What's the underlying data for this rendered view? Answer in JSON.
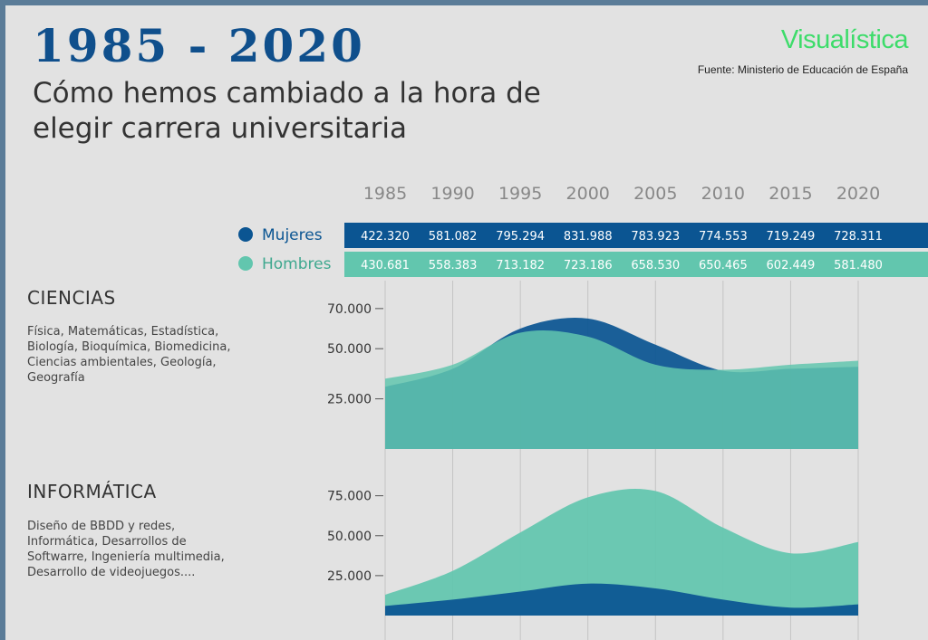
{
  "header": {
    "title": "1985 - 2020",
    "subtitle": "Cómo hemos cambiado a la hora de elegir carrera universitaria",
    "brand": "Visualística",
    "source": "Fuente: Ministerio de Educación de España"
  },
  "colors": {
    "mujeres": "#0b5592",
    "hombres": "#62c6ae",
    "background": "#e2e2e2",
    "title": "#0f4f8c",
    "brand": "#3ddc6a"
  },
  "legend": [
    {
      "label": "Mujeres",
      "color": "#0b5592"
    },
    {
      "label": "Hombres",
      "color": "#62c6ae"
    }
  ],
  "sections": [
    {
      "title": "CIENCIAS",
      "description": "Física, Matemáticas, Estadística, Biología, Bioquímica, Biomedicina, Ciencias ambientales, Geología, Geografía"
    },
    {
      "title": "INFORMÁTICA",
      "description": "Diseño de BBDD y redes, Informática, Desarrollos de Softwarre, Ingeniería multimedia, Desarrollo de videojuegos...."
    }
  ],
  "chart_data": [
    {
      "type": "table",
      "columns": [
        "1985",
        "1990",
        "1995",
        "2000",
        "2005",
        "2010",
        "2015",
        "2020"
      ],
      "rows": [
        {
          "name": "Mujeres",
          "values": [
            "422.320",
            "581.082",
            "795.294",
            "831.988",
            "783.923",
            "774.553",
            "719.249",
            "728.311"
          ]
        },
        {
          "name": "Hombres",
          "values": [
            "430.681",
            "558.383",
            "713.182",
            "723.186",
            "658.530",
            "650.465",
            "602.449",
            "581.480"
          ]
        }
      ]
    },
    {
      "type": "area",
      "x": [
        1985,
        1990,
        1995,
        2000,
        2005,
        2010,
        2015,
        2020
      ],
      "yticks": [
        25000,
        50000,
        70000
      ],
      "ytick_labels": [
        "25.000",
        "50.000",
        "70.000"
      ],
      "ylim": [
        0,
        74000
      ],
      "series": [
        {
          "name": "Mujeres",
          "values": [
            31000,
            40000,
            60000,
            65000,
            52000,
            39000,
            40000,
            41000
          ]
        },
        {
          "name": "Hombres",
          "values": [
            35000,
            42000,
            58000,
            56000,
            42000,
            39500,
            42000,
            44000
          ]
        }
      ]
    },
    {
      "type": "area",
      "x": [
        1985,
        1990,
        1995,
        2000,
        2005,
        2010,
        2015,
        2020
      ],
      "yticks": [
        25000,
        50000,
        75000
      ],
      "ytick_labels": [
        "25.000",
        "50.000",
        "75.000"
      ],
      "ylim": [
        0,
        85000
      ],
      "series": [
        {
          "name": "Mujeres",
          "values": [
            6000,
            10000,
            15000,
            20000,
            17000,
            10000,
            5000,
            7000
          ]
        },
        {
          "name": "Hombres",
          "values": [
            13000,
            28000,
            52000,
            74000,
            78000,
            55000,
            39000,
            46000
          ]
        }
      ]
    }
  ]
}
